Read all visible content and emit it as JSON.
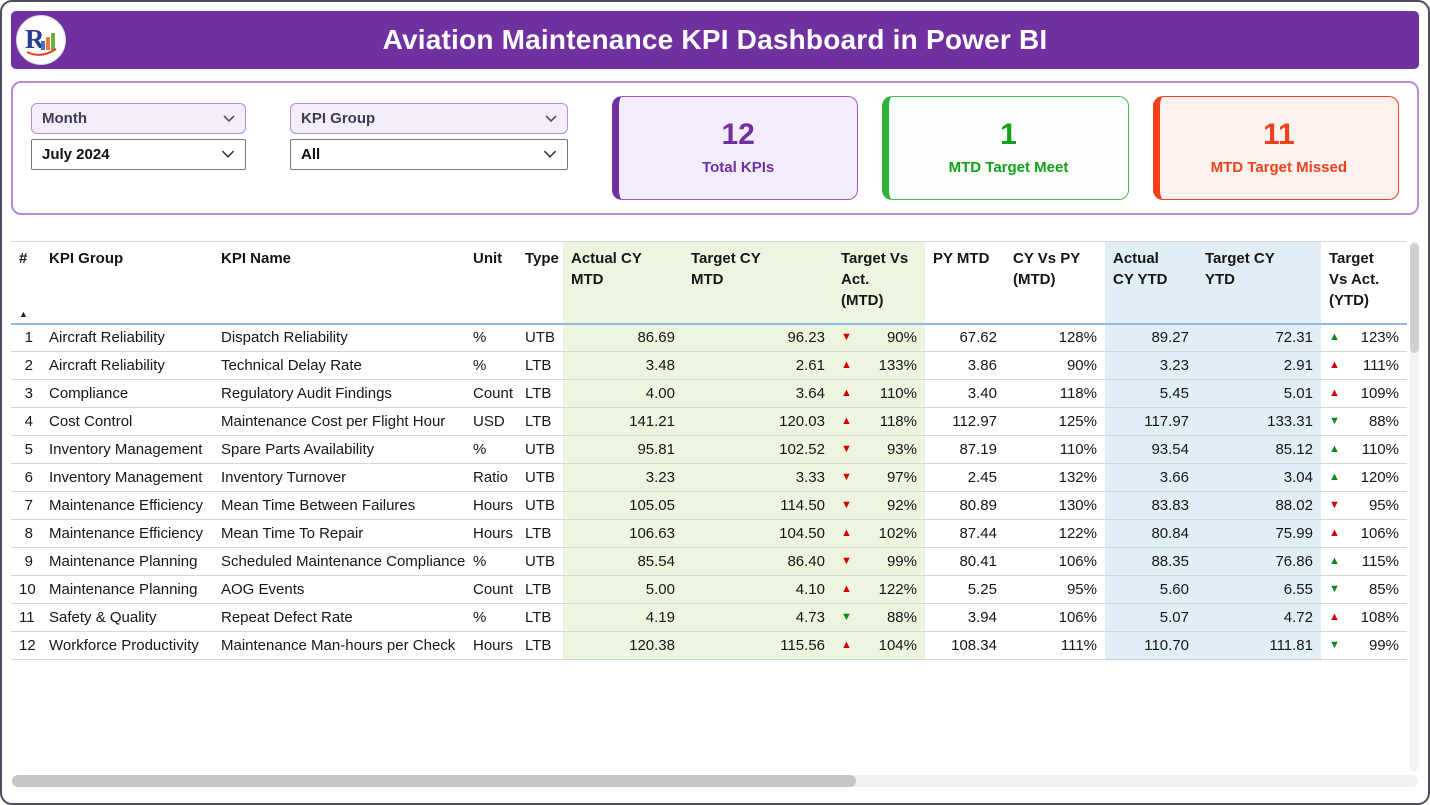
{
  "header": {
    "title": "Aviation Maintenance KPI Dashboard in Power BI"
  },
  "filters": {
    "month": {
      "label": "Month",
      "value": "July 2024"
    },
    "kpi_group": {
      "label": "KPI Group",
      "value": "All"
    }
  },
  "cards": [
    {
      "value": "12",
      "label": "Total KPIs",
      "color": "#7030A0",
      "accent": "#7030A0",
      "border": "#9b59c7",
      "bg": "#f3ecfa"
    },
    {
      "value": "1",
      "label": "MTD Target Meet",
      "color": "#12a119",
      "accent": "#2bb33a",
      "border": "#46be52",
      "bg": "#fbfefb"
    },
    {
      "value": "11",
      "label": "MTD Target Missed",
      "color": "#f2401c",
      "accent": "#f2401c",
      "border": "#f2401c",
      "bg": "#fdf2ee"
    }
  ],
  "colors": {
    "good": "#0b8a1e",
    "bad": "#d40000"
  },
  "table": {
    "columns": [
      "#",
      "KPI Group",
      "KPI Name",
      "Unit",
      "Type",
      "Actual CY\nMTD",
      "Target CY\nMTD",
      "Target Vs\nAct.\n(MTD)",
      "PY MTD",
      "CY Vs PY\n(MTD)",
      "Actual\nCY YTD",
      "Target CY\nYTD",
      "Target\nVs Act.\n(YTD)"
    ],
    "rows": [
      {
        "num": "1",
        "kpi_group": "Aircraft Reliability",
        "kpi_name": "Dispatch Reliability",
        "unit": "%",
        "type": "UTB",
        "actual_cy_mtd": "86.69",
        "target_cy_mtd": "96.23",
        "target_vs_act_mtd": {
          "arrow": "down",
          "sentiment": "bad",
          "value": "90%"
        },
        "py_mtd": "67.62",
        "cy_vs_py_mtd": "128%",
        "actual_cy_ytd": "89.27",
        "target_cy_ytd": "72.31",
        "target_vs_act_ytd": {
          "arrow": "up",
          "sentiment": "good",
          "value": "123%"
        }
      },
      {
        "num": "2",
        "kpi_group": "Aircraft Reliability",
        "kpi_name": "Technical Delay Rate",
        "unit": "%",
        "type": "LTB",
        "actual_cy_mtd": "3.48",
        "target_cy_mtd": "2.61",
        "target_vs_act_mtd": {
          "arrow": "up",
          "sentiment": "bad",
          "value": "133%"
        },
        "py_mtd": "3.86",
        "cy_vs_py_mtd": "90%",
        "actual_cy_ytd": "3.23",
        "target_cy_ytd": "2.91",
        "target_vs_act_ytd": {
          "arrow": "up",
          "sentiment": "bad",
          "value": "111%"
        }
      },
      {
        "num": "3",
        "kpi_group": "Compliance",
        "kpi_name": "Regulatory Audit Findings",
        "unit": "Count",
        "type": "LTB",
        "actual_cy_mtd": "4.00",
        "target_cy_mtd": "3.64",
        "target_vs_act_mtd": {
          "arrow": "up",
          "sentiment": "bad",
          "value": "110%"
        },
        "py_mtd": "3.40",
        "cy_vs_py_mtd": "118%",
        "actual_cy_ytd": "5.45",
        "target_cy_ytd": "5.01",
        "target_vs_act_ytd": {
          "arrow": "up",
          "sentiment": "bad",
          "value": "109%"
        }
      },
      {
        "num": "4",
        "kpi_group": "Cost Control",
        "kpi_name": "Maintenance Cost per Flight Hour",
        "unit": "USD",
        "type": "LTB",
        "actual_cy_mtd": "141.21",
        "target_cy_mtd": "120.03",
        "target_vs_act_mtd": {
          "arrow": "up",
          "sentiment": "bad",
          "value": "118%"
        },
        "py_mtd": "112.97",
        "cy_vs_py_mtd": "125%",
        "actual_cy_ytd": "117.97",
        "target_cy_ytd": "133.31",
        "target_vs_act_ytd": {
          "arrow": "down",
          "sentiment": "good",
          "value": "88%"
        }
      },
      {
        "num": "5",
        "kpi_group": "Inventory Management",
        "kpi_name": "Spare Parts Availability",
        "unit": "%",
        "type": "UTB",
        "actual_cy_mtd": "95.81",
        "target_cy_mtd": "102.52",
        "target_vs_act_mtd": {
          "arrow": "down",
          "sentiment": "bad",
          "value": "93%"
        },
        "py_mtd": "87.19",
        "cy_vs_py_mtd": "110%",
        "actual_cy_ytd": "93.54",
        "target_cy_ytd": "85.12",
        "target_vs_act_ytd": {
          "arrow": "up",
          "sentiment": "good",
          "value": "110%"
        }
      },
      {
        "num": "6",
        "kpi_group": "Inventory Management",
        "kpi_name": "Inventory Turnover",
        "unit": "Ratio",
        "type": "UTB",
        "actual_cy_mtd": "3.23",
        "target_cy_mtd": "3.33",
        "target_vs_act_mtd": {
          "arrow": "down",
          "sentiment": "bad",
          "value": "97%"
        },
        "py_mtd": "2.45",
        "cy_vs_py_mtd": "132%",
        "actual_cy_ytd": "3.66",
        "target_cy_ytd": "3.04",
        "target_vs_act_ytd": {
          "arrow": "up",
          "sentiment": "good",
          "value": "120%"
        }
      },
      {
        "num": "7",
        "kpi_group": "Maintenance Efficiency",
        "kpi_name": "Mean Time Between Failures",
        "unit": "Hours",
        "type": "UTB",
        "actual_cy_mtd": "105.05",
        "target_cy_mtd": "114.50",
        "target_vs_act_mtd": {
          "arrow": "down",
          "sentiment": "bad",
          "value": "92%"
        },
        "py_mtd": "80.89",
        "cy_vs_py_mtd": "130%",
        "actual_cy_ytd": "83.83",
        "target_cy_ytd": "88.02",
        "target_vs_act_ytd": {
          "arrow": "down",
          "sentiment": "bad",
          "value": "95%"
        }
      },
      {
        "num": "8",
        "kpi_group": "Maintenance Efficiency",
        "kpi_name": "Mean Time To Repair",
        "unit": "Hours",
        "type": "LTB",
        "actual_cy_mtd": "106.63",
        "target_cy_mtd": "104.50",
        "target_vs_act_mtd": {
          "arrow": "up",
          "sentiment": "bad",
          "value": "102%"
        },
        "py_mtd": "87.44",
        "cy_vs_py_mtd": "122%",
        "actual_cy_ytd": "80.84",
        "target_cy_ytd": "75.99",
        "target_vs_act_ytd": {
          "arrow": "up",
          "sentiment": "bad",
          "value": "106%"
        }
      },
      {
        "num": "9",
        "kpi_group": "Maintenance Planning",
        "kpi_name": "Scheduled Maintenance Compliance",
        "unit": "%",
        "type": "UTB",
        "actual_cy_mtd": "85.54",
        "target_cy_mtd": "86.40",
        "target_vs_act_mtd": {
          "arrow": "down",
          "sentiment": "bad",
          "value": "99%"
        },
        "py_mtd": "80.41",
        "cy_vs_py_mtd": "106%",
        "actual_cy_ytd": "88.35",
        "target_cy_ytd": "76.86",
        "target_vs_act_ytd": {
          "arrow": "up",
          "sentiment": "good",
          "value": "115%"
        }
      },
      {
        "num": "10",
        "kpi_group": "Maintenance Planning",
        "kpi_name": "AOG Events",
        "unit": "Count",
        "type": "LTB",
        "actual_cy_mtd": "5.00",
        "target_cy_mtd": "4.10",
        "target_vs_act_mtd": {
          "arrow": "up",
          "sentiment": "bad",
          "value": "122%"
        },
        "py_mtd": "5.25",
        "cy_vs_py_mtd": "95%",
        "actual_cy_ytd": "5.60",
        "target_cy_ytd": "6.55",
        "target_vs_act_ytd": {
          "arrow": "down",
          "sentiment": "good",
          "value": "85%"
        }
      },
      {
        "num": "11",
        "kpi_group": "Safety & Quality",
        "kpi_name": "Repeat Defect Rate",
        "unit": "%",
        "type": "LTB",
        "actual_cy_mtd": "4.19",
        "target_cy_mtd": "4.73",
        "target_vs_act_mtd": {
          "arrow": "down",
          "sentiment": "good",
          "value": "88%"
        },
        "py_mtd": "3.94",
        "cy_vs_py_mtd": "106%",
        "actual_cy_ytd": "5.07",
        "target_cy_ytd": "4.72",
        "target_vs_act_ytd": {
          "arrow": "up",
          "sentiment": "bad",
          "value": "108%"
        }
      },
      {
        "num": "12",
        "kpi_group": "Workforce Productivity",
        "kpi_name": "Maintenance Man-hours per Check",
        "unit": "Hours",
        "type": "LTB",
        "actual_cy_mtd": "120.38",
        "target_cy_mtd": "115.56",
        "target_vs_act_mtd": {
          "arrow": "up",
          "sentiment": "bad",
          "value": "104%"
        },
        "py_mtd": "108.34",
        "cy_vs_py_mtd": "111%",
        "actual_cy_ytd": "110.70",
        "target_cy_ytd": "111.81",
        "target_vs_act_ytd": {
          "arrow": "down",
          "sentiment": "good",
          "value": "99%"
        }
      }
    ]
  }
}
